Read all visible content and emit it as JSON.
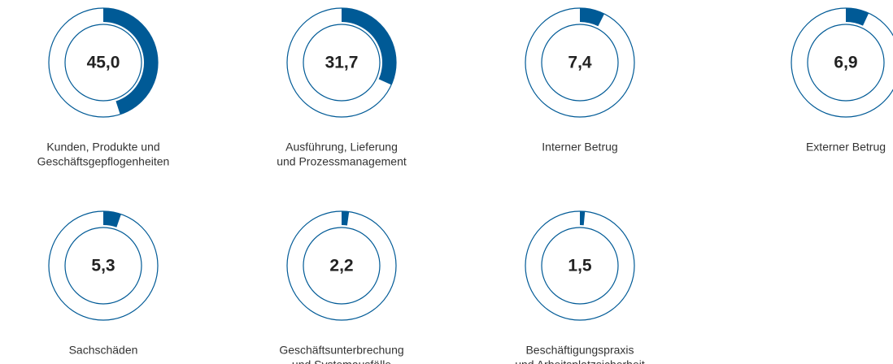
{
  "chart_data": {
    "type": "donut",
    "categories": [
      [
        "Kunden, Produkte und",
        "Geschäftsgepflogenheiten"
      ],
      [
        "Ausführung, Lieferung",
        "und Prozessmanagement"
      ],
      [
        "Interner Betrug"
      ],
      [
        "Externer Betrug"
      ],
      [
        "Sachschäden"
      ],
      [
        "Geschäftsunterbrechung",
        "und Systemausfälle"
      ],
      [
        "Beschäftigungspraxis",
        "und Arbeitsplatzsicherheit"
      ]
    ],
    "values": [
      45.0,
      31.7,
      7.4,
      6.9,
      5.3,
      2.2,
      1.5
    ],
    "value_labels": [
      "45,0",
      "31,7",
      "7,4",
      "6,9",
      "5,3",
      "2,2",
      "1,5"
    ],
    "ylim": [
      0,
      100
    ],
    "color": "#005a96"
  }
}
